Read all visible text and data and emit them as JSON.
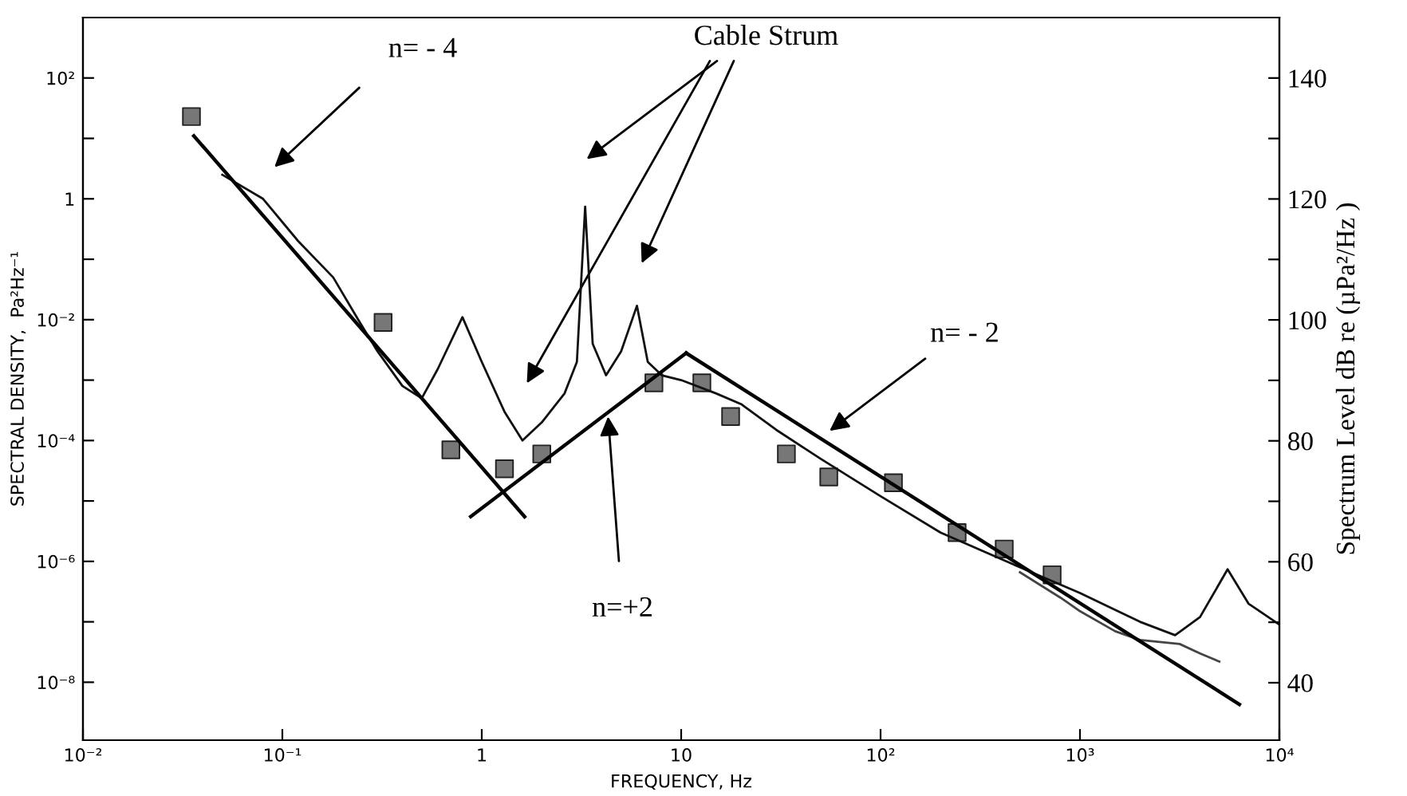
{
  "chart_data": {
    "type": "line",
    "xlabel": "FREQUENCY, Hz",
    "ylabel": "SPECTRAL DENSITY,  Pa²Hz⁻¹",
    "y2label": "Spectrum Level dB re (µPa²/Hz )",
    "log": "xy",
    "grid": false,
    "xlim": [
      0.01,
      10000
    ],
    "xticks": [
      {
        "value": 0.01,
        "label": "10⁻²"
      },
      {
        "value": 0.1,
        "label": "10⁻¹"
      },
      1,
      10,
      {
        "value": 100,
        "label": "10²"
      },
      {
        "value": 1000,
        "label": "10³"
      },
      {
        "value": 10000,
        "label": "10⁴"
      }
    ],
    "ylim": [
      1.1e-09,
      1000
    ],
    "yticks": [
      {
        "value": 100,
        "label": "10²"
      },
      {
        "value": 10,
        "label": null
      },
      1,
      {
        "value": 0.1,
        "label": null
      },
      {
        "value": 0.01,
        "label": "10⁻²"
      },
      {
        "value": 0.001,
        "label": null
      },
      {
        "value": 0.0001,
        "label": "10⁻⁴"
      },
      {
        "value": 1e-05,
        "label": null
      },
      {
        "value": 1e-06,
        "label": "10⁻⁶"
      },
      {
        "value": 1e-07,
        "label": null
      },
      {
        "value": 1e-08,
        "label": "10⁻⁸"
      }
    ],
    "y2lim": [
      30.5,
      150
    ],
    "y2ticks": [
      140,
      {
        "value": 130,
        "label": null
      },
      120,
      {
        "value": 110,
        "label": null
      },
      100,
      {
        "value": 90,
        "label": null
      },
      80,
      {
        "value": 70,
        "label": null
      },
      60,
      {
        "value": 50,
        "label": null
      },
      40
    ],
    "series": [
      {
        "color": "#111111",
        "marker": "none",
        "line_style": "solid",
        "x": [
          0.05,
          0.08,
          0.12,
          0.18,
          0.24,
          0.3,
          0.4,
          0.5,
          0.6,
          0.8,
          1.0,
          1.3,
          1.6,
          2.0,
          2.6,
          3.0,
          3.3,
          3.6,
          4.2,
          5.0,
          6.0,
          6.8,
          8.0,
          10,
          15,
          20,
          30,
          50,
          100,
          200,
          500,
          1000,
          2000,
          3000,
          4000,
          5500,
          7000,
          10000
        ],
        "values": [
          2.5,
          1.0,
          0.2,
          0.05,
          0.01,
          0.003,
          0.0008,
          0.0005,
          0.0015,
          0.011,
          0.002,
          0.0003,
          0.0001,
          0.0002,
          0.0006,
          0.002,
          0.74,
          0.004,
          0.0012,
          0.003,
          0.017,
          0.002,
          0.0012,
          0.001,
          0.0006,
          0.0004,
          0.00015,
          5e-05,
          1.2e-05,
          3e-06,
          8e-07,
          3e-07,
          1e-07,
          6e-08,
          1.2e-07,
          7.4e-07,
          2e-07,
          9e-08
        ]
      },
      {
        "color": "#444444",
        "marker": "none",
        "line_style": "solid",
        "x": [
          500,
          800,
          1000,
          1500,
          2000,
          3160,
          4000,
          5000
        ],
        "values": [
          6.6e-07,
          2.5e-07,
          1.5e-07,
          7e-08,
          5e-08,
          4.3e-08,
          3e-08,
          2.2e-08
        ]
      },
      {
        "type": "scatter",
        "color": "#777777",
        "marker": "square",
        "x": [
          0.035,
          0.32,
          0.7,
          1.3,
          2.0,
          7.3,
          12.7,
          17.7,
          33.7,
          55,
          116,
          242,
          417,
          725
        ],
        "values": [
          23,
          0.009,
          7e-05,
          3.4e-05,
          6e-05,
          0.0009,
          0.0009,
          0.00025,
          6e-05,
          2.5e-05,
          2e-05,
          3e-06,
          1.6e-06,
          6e-07
        ]
      },
      {
        "color": "#000000",
        "marker": "none",
        "line_style": "solid",
        "x": [
          0.036,
          1.64
        ],
        "values": [
          11,
          5.5e-06
        ]
      },
      {
        "color": "#000000",
        "marker": "none",
        "line_style": "solid",
        "x": [
          0.88,
          10.6
        ],
        "values": [
          5.5e-06,
          0.0028
        ]
      },
      {
        "color": "#000000",
        "marker": "none",
        "line_style": "solid",
        "x": [
          10.6,
          6300
        ],
        "values": [
          0.0028,
          4.3e-09
        ]
      }
    ],
    "annotations": [
      "n= - 4",
      "Cable Strum",
      "n= - 2",
      {
        "text": "n=+2",
        "x": 4.3,
        "y": 0.00025
      }
    ]
  }
}
